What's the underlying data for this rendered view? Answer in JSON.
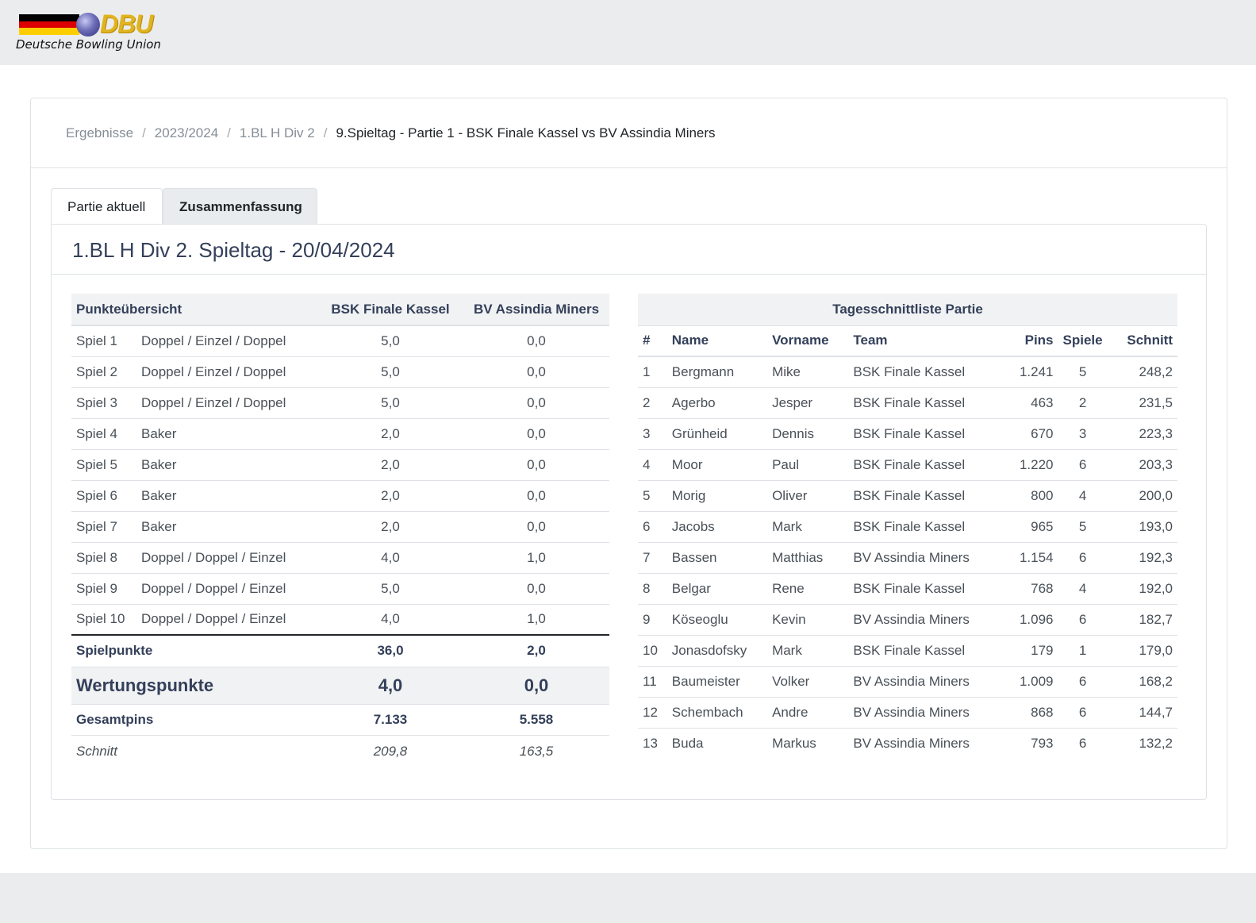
{
  "logo": {
    "text": "DBU",
    "subtitle": "Deutsche Bowling Union",
    "flag_colors": [
      "#000000",
      "#dd0000",
      "#ffce00"
    ]
  },
  "breadcrumb": {
    "items": [
      "Ergebnisse",
      "2023/2024",
      "1.BL H Div 2"
    ],
    "separator": "/",
    "active": "9.Spieltag - Partie 1 - BSK Finale Kassel vs BV Assindia Miners"
  },
  "tabs": [
    {
      "label": "Partie aktuell",
      "active": false
    },
    {
      "label": "Zusammenfassung",
      "active": true
    }
  ],
  "card_title": "1.BL H Div 2. Spieltag - 20/04/2024",
  "punkte": {
    "headers": {
      "title": "Punkteübersicht",
      "team_a": "BSK Finale Kassel",
      "team_b": "BV Assindia Miners"
    },
    "rows": [
      {
        "spiel": "Spiel 1",
        "type": "Doppel / Einzel / Doppel",
        "a": "5,0",
        "b": "0,0"
      },
      {
        "spiel": "Spiel 2",
        "type": "Doppel / Einzel / Doppel",
        "a": "5,0",
        "b": "0,0"
      },
      {
        "spiel": "Spiel 3",
        "type": "Doppel / Einzel / Doppel",
        "a": "5,0",
        "b": "0,0"
      },
      {
        "spiel": "Spiel 4",
        "type": "Baker",
        "a": "2,0",
        "b": "0,0"
      },
      {
        "spiel": "Spiel 5",
        "type": "Baker",
        "a": "2,0",
        "b": "0,0"
      },
      {
        "spiel": "Spiel 6",
        "type": "Baker",
        "a": "2,0",
        "b": "0,0"
      },
      {
        "spiel": "Spiel 7",
        "type": "Baker",
        "a": "2,0",
        "b": "0,0"
      },
      {
        "spiel": "Spiel 8",
        "type": "Doppel / Doppel / Einzel",
        "a": "4,0",
        "b": "1,0"
      },
      {
        "spiel": "Spiel 9",
        "type": "Doppel / Doppel / Einzel",
        "a": "5,0",
        "b": "0,0"
      },
      {
        "spiel": "Spiel 10",
        "type": "Doppel / Doppel / Einzel",
        "a": "4,0",
        "b": "1,0"
      }
    ],
    "summary": {
      "spielpunkte": {
        "label": "Spielpunkte",
        "a": "36,0",
        "b": "2,0"
      },
      "wertung": {
        "label": "Wertungspunkte",
        "a": "4,0",
        "b": "0,0"
      },
      "gesamt": {
        "label": "Gesamtpins",
        "a": "7.133",
        "b": "5.558"
      },
      "schnitt": {
        "label": "Schnitt",
        "a": "209,8",
        "b": "163,5"
      }
    }
  },
  "tages": {
    "caption": "Tagesschnittliste Partie",
    "headers": {
      "num": "#",
      "name": "Name",
      "vorname": "Vorname",
      "team": "Team",
      "pins": "Pins",
      "spiele": "Spiele",
      "schnitt": "Schnitt"
    },
    "rows": [
      {
        "num": "1",
        "name": "Bergmann",
        "vorname": "Mike",
        "team": "BSK Finale Kassel",
        "pins": "1.241",
        "spiele": "5",
        "schnitt": "248,2"
      },
      {
        "num": "2",
        "name": "Agerbo",
        "vorname": "Jesper",
        "team": "BSK Finale Kassel",
        "pins": "463",
        "spiele": "2",
        "schnitt": "231,5"
      },
      {
        "num": "3",
        "name": "Grünheid",
        "vorname": "Dennis",
        "team": "BSK Finale Kassel",
        "pins": "670",
        "spiele": "3",
        "schnitt": "223,3"
      },
      {
        "num": "4",
        "name": "Moor",
        "vorname": "Paul",
        "team": "BSK Finale Kassel",
        "pins": "1.220",
        "spiele": "6",
        "schnitt": "203,3"
      },
      {
        "num": "5",
        "name": "Morig",
        "vorname": "Oliver",
        "team": "BSK Finale Kassel",
        "pins": "800",
        "spiele": "4",
        "schnitt": "200,0"
      },
      {
        "num": "6",
        "name": "Jacobs",
        "vorname": "Mark",
        "team": "BSK Finale Kassel",
        "pins": "965",
        "spiele": "5",
        "schnitt": "193,0"
      },
      {
        "num": "7",
        "name": "Bassen",
        "vorname": "Matthias",
        "team": "BV Assindia Miners",
        "pins": "1.154",
        "spiele": "6",
        "schnitt": "192,3"
      },
      {
        "num": "8",
        "name": "Belgar",
        "vorname": "Rene",
        "team": "BSK Finale Kassel",
        "pins": "768",
        "spiele": "4",
        "schnitt": "192,0"
      },
      {
        "num": "9",
        "name": "Köseoglu",
        "vorname": "Kevin",
        "team": "BV Assindia Miners",
        "pins": "1.096",
        "spiele": "6",
        "schnitt": "182,7"
      },
      {
        "num": "10",
        "name": "Jonasdofsky",
        "vorname": "Mark",
        "team": "BSK Finale Kassel",
        "pins": "179",
        "spiele": "1",
        "schnitt": "179,0"
      },
      {
        "num": "11",
        "name": "Baumeister",
        "vorname": "Volker",
        "team": "BV Assindia Miners",
        "pins": "1.009",
        "spiele": "6",
        "schnitt": "168,2"
      },
      {
        "num": "12",
        "name": "Schembach",
        "vorname": "Andre",
        "team": "BV Assindia Miners",
        "pins": "868",
        "spiele": "6",
        "schnitt": "144,7"
      },
      {
        "num": "13",
        "name": "Buda",
        "vorname": "Markus",
        "team": "BV Assindia Miners",
        "pins": "793",
        "spiele": "6",
        "schnitt": "132,2"
      }
    ]
  }
}
